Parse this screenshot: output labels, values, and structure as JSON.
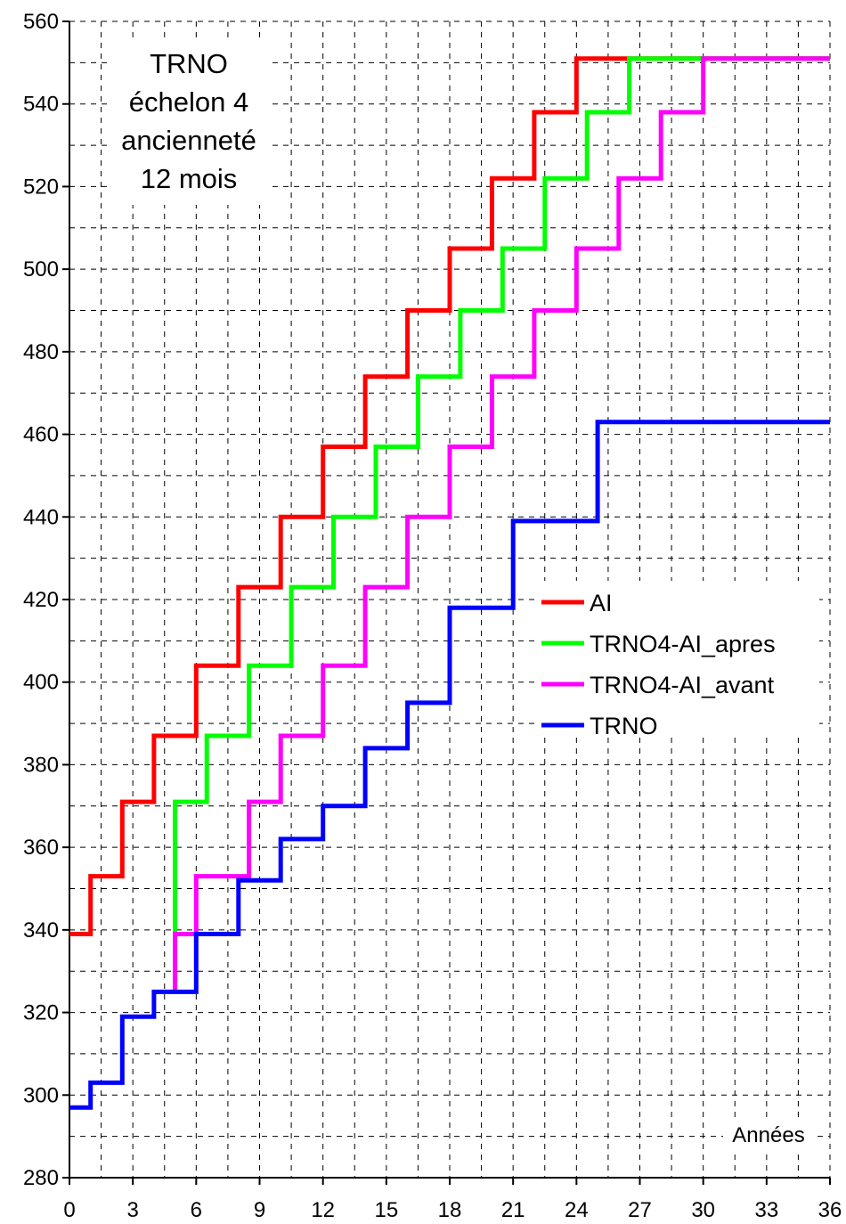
{
  "chart_data": {
    "type": "line",
    "step": true,
    "title_lines": [
      "TRNO",
      "échelon 4",
      "ancienneté",
      "12 mois"
    ],
    "xlabel": "Années",
    "ylabel": "",
    "xlim": [
      0,
      36
    ],
    "ylim": [
      280,
      560
    ],
    "xticks": [
      0,
      3,
      6,
      9,
      12,
      15,
      18,
      21,
      24,
      27,
      30,
      33,
      36
    ],
    "yticks": [
      280,
      300,
      320,
      340,
      360,
      380,
      400,
      420,
      440,
      460,
      480,
      500,
      520,
      540,
      560
    ],
    "grid": true,
    "grid_style": "dashed",
    "legend_position": "right",
    "series": [
      {
        "name": "AI",
        "color": "#ff0000",
        "points": [
          [
            0,
            339
          ],
          [
            1,
            339
          ],
          [
            1,
            353
          ],
          [
            2.5,
            353
          ],
          [
            2.5,
            371
          ],
          [
            4,
            371
          ],
          [
            4,
            387
          ],
          [
            6,
            387
          ],
          [
            6,
            404
          ],
          [
            8,
            404
          ],
          [
            8,
            423
          ],
          [
            10,
            423
          ],
          [
            10,
            440
          ],
          [
            12,
            440
          ],
          [
            12,
            457
          ],
          [
            14,
            457
          ],
          [
            14,
            474
          ],
          [
            16,
            474
          ],
          [
            16,
            490
          ],
          [
            18,
            490
          ],
          [
            18,
            505
          ],
          [
            20,
            505
          ],
          [
            20,
            522
          ],
          [
            22,
            522
          ],
          [
            22,
            538
          ],
          [
            24,
            538
          ],
          [
            24,
            551
          ],
          [
            36,
            551
          ]
        ]
      },
      {
        "name": "TRNO4-AI_apres",
        "color": "#00ff00",
        "points": [
          [
            5,
            339
          ],
          [
            5,
            371
          ],
          [
            6.5,
            371
          ],
          [
            6.5,
            387
          ],
          [
            8.5,
            387
          ],
          [
            8.5,
            404
          ],
          [
            10.5,
            404
          ],
          [
            10.5,
            423
          ],
          [
            12.5,
            423
          ],
          [
            12.5,
            440
          ],
          [
            14.5,
            440
          ],
          [
            14.5,
            457
          ],
          [
            16.5,
            457
          ],
          [
            16.5,
            474
          ],
          [
            18.5,
            474
          ],
          [
            18.5,
            490
          ],
          [
            20.5,
            490
          ],
          [
            20.5,
            505
          ],
          [
            22.5,
            505
          ],
          [
            22.5,
            522
          ],
          [
            24.5,
            522
          ],
          [
            24.5,
            538
          ],
          [
            26.5,
            538
          ],
          [
            26.5,
            551
          ],
          [
            36,
            551
          ]
        ]
      },
      {
        "name": "TRNO4-AI_avant",
        "color": "#ff00ff",
        "points": [
          [
            5,
            325
          ],
          [
            5,
            339
          ],
          [
            6,
            339
          ],
          [
            6,
            353
          ],
          [
            8.5,
            353
          ],
          [
            8.5,
            371
          ],
          [
            10,
            371
          ],
          [
            10,
            387
          ],
          [
            12,
            387
          ],
          [
            12,
            404
          ],
          [
            14,
            404
          ],
          [
            14,
            423
          ],
          [
            16,
            423
          ],
          [
            16,
            440
          ],
          [
            18,
            440
          ],
          [
            18,
            457
          ],
          [
            20,
            457
          ],
          [
            20,
            474
          ],
          [
            22,
            474
          ],
          [
            22,
            490
          ],
          [
            24,
            490
          ],
          [
            24,
            505
          ],
          [
            26,
            505
          ],
          [
            26,
            522
          ],
          [
            28,
            522
          ],
          [
            28,
            538
          ],
          [
            30,
            538
          ],
          [
            30,
            551
          ],
          [
            36,
            551
          ]
        ]
      },
      {
        "name": "TRNO",
        "color": "#0000ff",
        "points": [
          [
            0,
            297
          ],
          [
            1,
            297
          ],
          [
            1,
            303
          ],
          [
            2.5,
            303
          ],
          [
            2.5,
            319
          ],
          [
            4,
            319
          ],
          [
            4,
            325
          ],
          [
            6,
            325
          ],
          [
            6,
            339
          ],
          [
            8,
            339
          ],
          [
            8,
            352
          ],
          [
            10,
            352
          ],
          [
            10,
            362
          ],
          [
            12,
            362
          ],
          [
            12,
            370
          ],
          [
            14,
            370
          ],
          [
            14,
            384
          ],
          [
            16,
            384
          ],
          [
            16,
            395
          ],
          [
            18,
            395
          ],
          [
            18,
            418
          ],
          [
            21,
            418
          ],
          [
            21,
            439
          ],
          [
            25,
            439
          ],
          [
            25,
            463
          ],
          [
            36,
            463
          ]
        ]
      }
    ]
  }
}
